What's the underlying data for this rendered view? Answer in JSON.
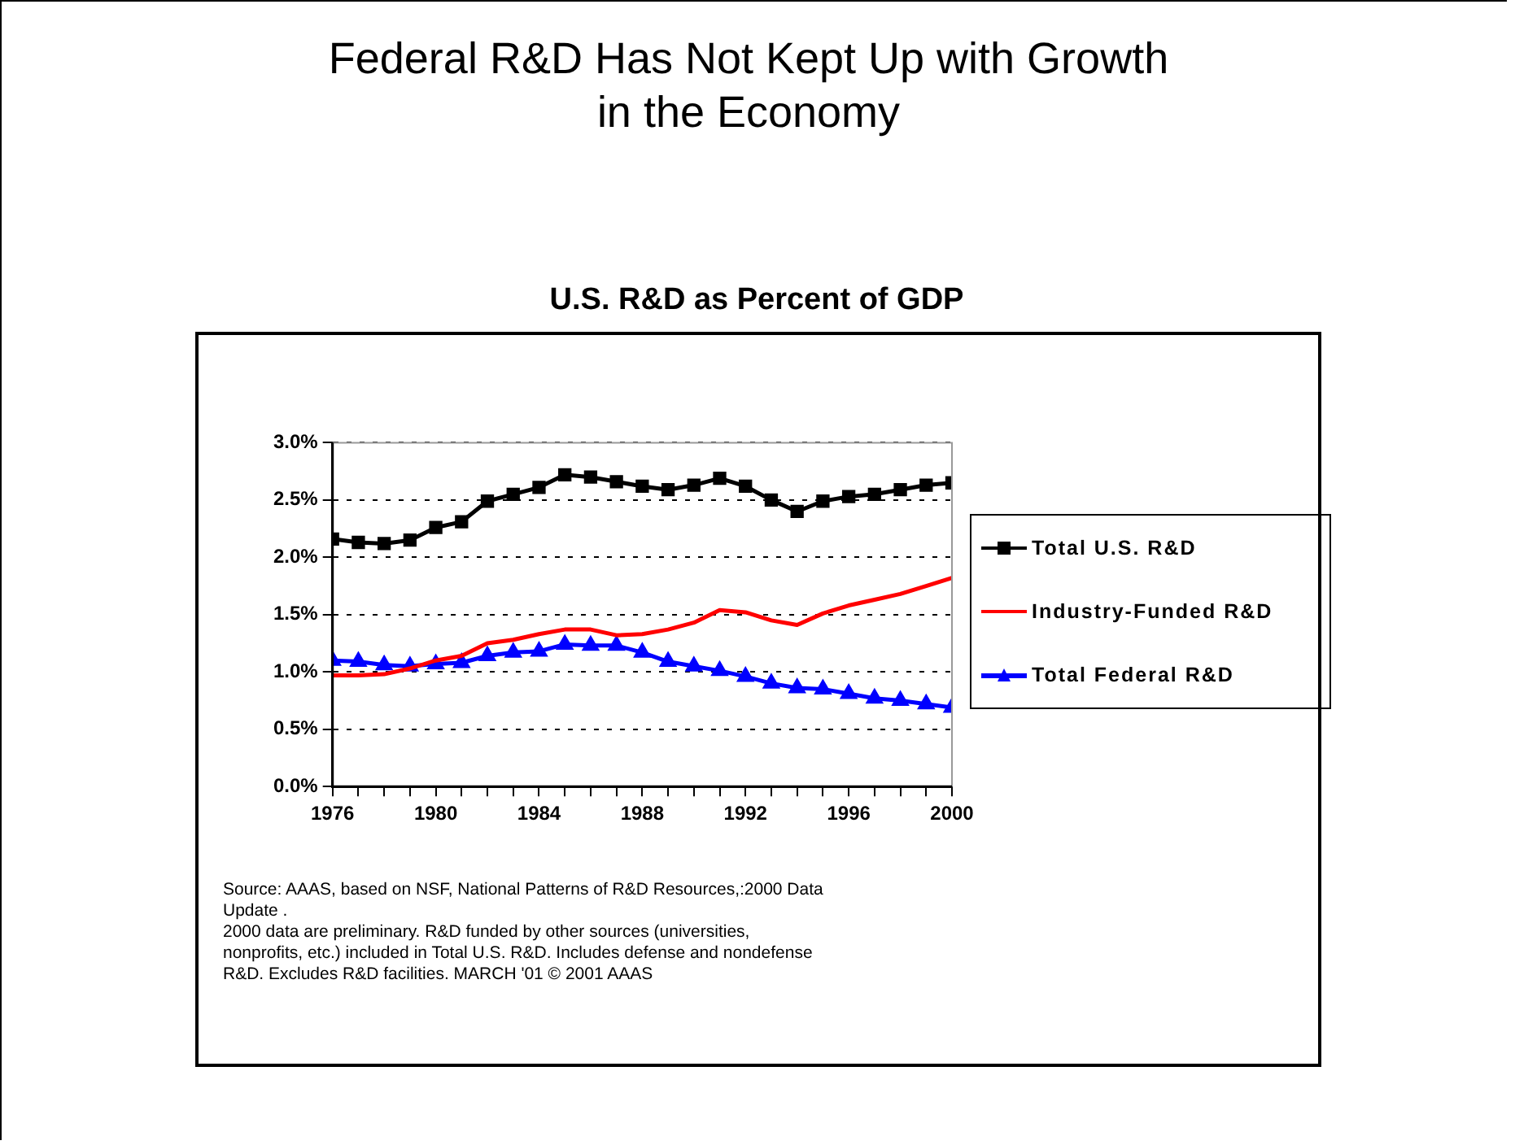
{
  "chart_data": {
    "type": "line",
    "title": "Federal R&D Has Not Kept Up with Growth in the Economy",
    "subtitle": "U.S. R&D as Percent of GDP",
    "x": [
      1976,
      1977,
      1978,
      1979,
      1980,
      1981,
      1982,
      1983,
      1984,
      1985,
      1986,
      1987,
      1988,
      1989,
      1990,
      1991,
      1992,
      1993,
      1994,
      1995,
      1996,
      1997,
      1998,
      1999,
      2000
    ],
    "series": [
      {
        "name": "Total U.S. R&D",
        "color": "#000000",
        "marker": "square",
        "values": [
          2.16,
          2.13,
          2.12,
          2.15,
          2.26,
          2.31,
          2.49,
          2.55,
          2.61,
          2.72,
          2.7,
          2.66,
          2.62,
          2.59,
          2.63,
          2.69,
          2.62,
          2.5,
          2.4,
          2.49,
          2.53,
          2.55,
          2.59,
          2.63,
          2.65
        ]
      },
      {
        "name": "Industry-Funded R&D",
        "color": "#ff0000",
        "marker": "none",
        "values": [
          0.97,
          0.97,
          0.98,
          1.03,
          1.1,
          1.14,
          1.25,
          1.28,
          1.33,
          1.37,
          1.37,
          1.32,
          1.33,
          1.37,
          1.43,
          1.54,
          1.52,
          1.45,
          1.41,
          1.51,
          1.58,
          1.63,
          1.68,
          1.75,
          1.82
        ]
      },
      {
        "name": "Total Federal R&D",
        "color": "#0000ff",
        "marker": "triangle",
        "values": [
          1.1,
          1.09,
          1.06,
          1.05,
          1.07,
          1.08,
          1.14,
          1.17,
          1.18,
          1.24,
          1.23,
          1.23,
          1.17,
          1.09,
          1.05,
          1.01,
          0.96,
          0.9,
          0.86,
          0.85,
          0.81,
          0.77,
          0.75,
          0.72,
          0.69
        ]
      }
    ],
    "xlim": [
      1976,
      2000
    ],
    "xticks": [
      1976,
      {
        "value": 1977,
        "label": null
      },
      {
        "value": 1978,
        "label": null
      },
      {
        "value": 1979,
        "label": null
      },
      1980,
      {
        "value": 1981,
        "label": null
      },
      {
        "value": 1982,
        "label": null
      },
      {
        "value": 1983,
        "label": null
      },
      1984,
      {
        "value": 1985,
        "label": null
      },
      {
        "value": 1986,
        "label": null
      },
      {
        "value": 1987,
        "label": null
      },
      1988,
      {
        "value": 1989,
        "label": null
      },
      {
        "value": 1990,
        "label": null
      },
      {
        "value": 1991,
        "label": null
      },
      1992,
      {
        "value": 1993,
        "label": null
      },
      {
        "value": 1994,
        "label": null
      },
      {
        "value": 1995,
        "label": null
      },
      1996,
      {
        "value": 1997,
        "label": null
      },
      {
        "value": 1998,
        "label": null
      },
      {
        "value": 1999,
        "label": null
      },
      2000
    ],
    "ylim": [
      0,
      3
    ],
    "yticks": [
      {
        "value": 0,
        "label": "0.0%"
      },
      {
        "value": 0.5,
        "label": "0.5%"
      },
      {
        "value": 1,
        "label": "1.0%"
      },
      {
        "value": 1.5,
        "label": "1.5%"
      },
      {
        "value": 2,
        "label": "2.0%"
      },
      {
        "value": 2.5,
        "label": "2.5%"
      },
      {
        "value": 3,
        "label": "3.0%"
      }
    ],
    "grid": "y",
    "line_style": "solid",
    "legend": "right",
    "annotations": [
      "Source: AAAS, based on NSF, National Patterns of R&D Resources,:2000 Data Update .\n2000 data are preliminary. R&D funded by other sources (universities, nonprofits, etc.) included in Total U.S. R&D. Includes defense and nondefense R&D. Excludes R&D facilities. MARCH '01 © 2001 AAAS"
    ]
  }
}
